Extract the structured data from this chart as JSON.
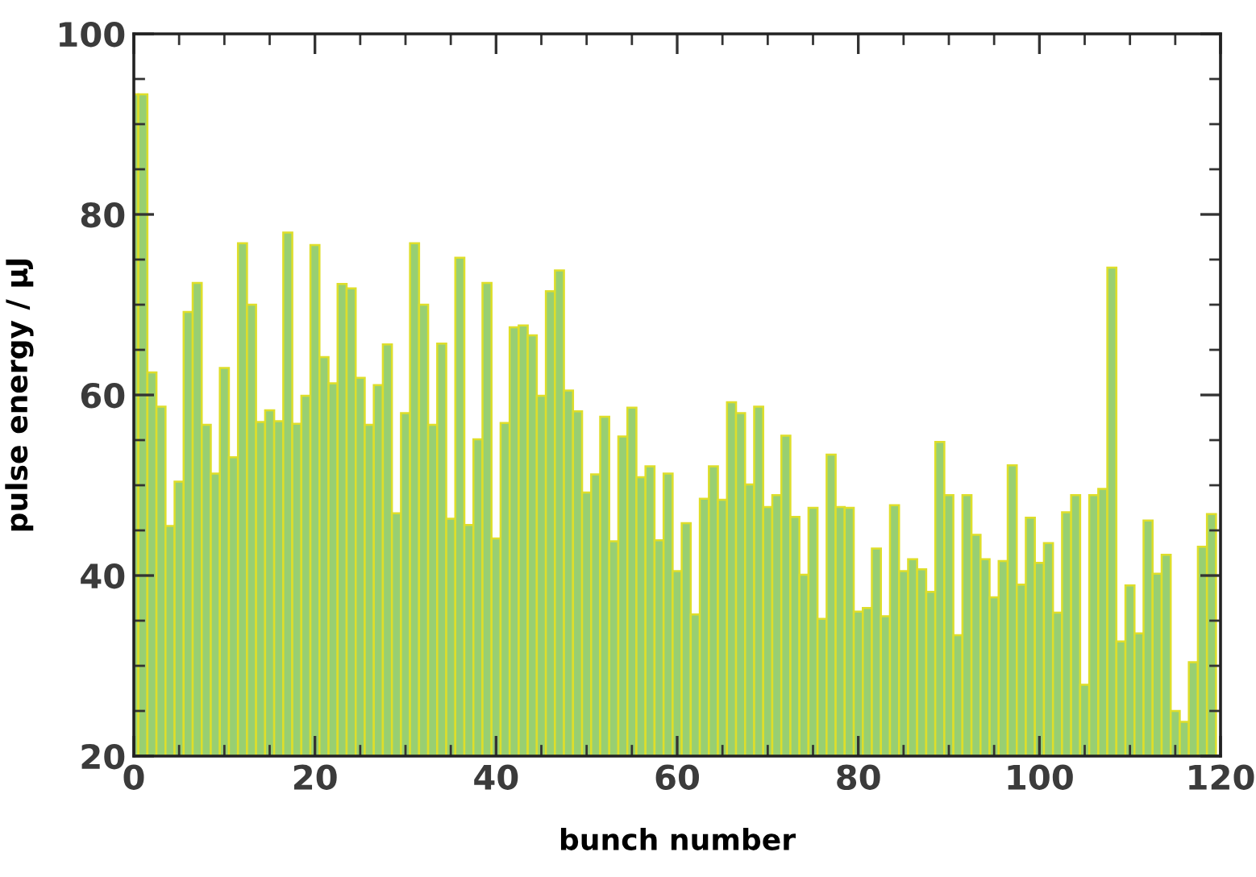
{
  "chart_data": {
    "type": "bar",
    "xlabel": "bunch number",
    "ylabel": "pulse energy / μJ",
    "x": [
      0,
      1,
      2,
      3,
      4,
      5,
      6,
      7,
      8,
      9,
      10,
      11,
      12,
      13,
      14,
      15,
      16,
      17,
      18,
      19,
      20,
      21,
      22,
      23,
      24,
      25,
      26,
      27,
      28,
      29,
      30,
      31,
      32,
      33,
      34,
      35,
      36,
      37,
      38,
      39,
      40,
      41,
      42,
      43,
      44,
      45,
      46,
      47,
      48,
      49,
      50,
      51,
      52,
      53,
      54,
      55,
      56,
      57,
      58,
      59,
      60,
      61,
      62,
      63,
      64,
      65,
      66,
      67,
      68,
      69,
      70,
      71,
      72,
      73,
      74,
      75,
      76,
      77,
      78,
      79,
      80,
      81,
      82,
      83,
      84,
      85,
      86,
      87,
      88,
      89,
      90,
      91,
      92,
      93,
      94,
      95,
      96,
      97,
      98,
      99,
      100,
      101,
      102,
      103,
      104,
      105,
      106,
      107,
      108,
      109,
      110,
      111,
      112,
      113,
      114,
      115,
      116,
      117,
      118,
      119
    ],
    "values": [
      93.3,
      93.3,
      62.5,
      58.7,
      45.5,
      50.4,
      69.2,
      72.4,
      56.7,
      51.3,
      63.0,
      53.1,
      76.8,
      70.0,
      57.0,
      58.3,
      57.1,
      78.0,
      56.8,
      59.9,
      76.6,
      64.2,
      61.3,
      72.3,
      71.8,
      61.9,
      56.7,
      61.1,
      65.6,
      46.9,
      58.0,
      76.8,
      70.0,
      56.7,
      65.7,
      46.3,
      75.2,
      45.6,
      55.1,
      72.4,
      44.1,
      56.9,
      67.5,
      67.7,
      66.6,
      59.9,
      71.5,
      73.8,
      60.5,
      58.2,
      49.2,
      51.2,
      57.6,
      43.8,
      55.4,
      58.6,
      50.9,
      52.1,
      43.9,
      51.3,
      40.5,
      45.8,
      35.7,
      48.5,
      52.1,
      48.4,
      59.2,
      58.0,
      50.1,
      58.7,
      47.6,
      48.9,
      55.5,
      46.5,
      40.1,
      47.5,
      35.2,
      53.4,
      47.6,
      47.5,
      36.0,
      36.4,
      43.0,
      35.5,
      47.8,
      40.5,
      41.8,
      40.7,
      38.2,
      54.8,
      48.9,
      33.4,
      48.9,
      44.5,
      41.8,
      37.6,
      41.6,
      52.2,
      39.0,
      46.4,
      41.4,
      43.6,
      35.9,
      47.0,
      48.9,
      27.9,
      48.9,
      49.6,
      74.1,
      32.7,
      38.9,
      33.6,
      46.1,
      40.2,
      42.3,
      25.0,
      23.8,
      30.4,
      43.2,
      46.8
    ],
    "color": "#98cf72",
    "xlim": [
      0,
      120
    ],
    "xticks": [
      0,
      20,
      40,
      60,
      80,
      100,
      120
    ],
    "ylim": [
      20,
      100
    ],
    "yticks": [
      20,
      40,
      60,
      80,
      100
    ],
    "grid": false
  }
}
